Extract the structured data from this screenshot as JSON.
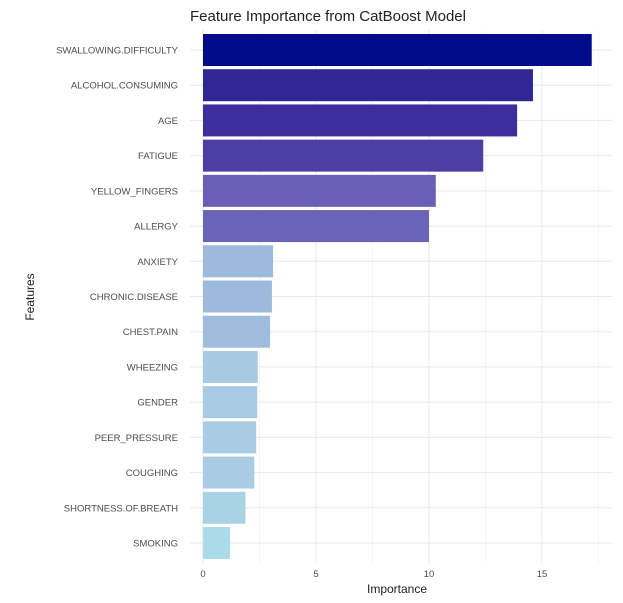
{
  "chart_data": {
    "type": "bar",
    "orientation": "horizontal",
    "title": "Feature Importance from CatBoost Model",
    "xlabel": "Importance",
    "ylabel": "Features",
    "xlim": [
      0,
      17.6
    ],
    "xticks": [
      0,
      5,
      10,
      15
    ],
    "grid": true,
    "legend": "none",
    "categories": [
      "SWALLOWING.DIFFICULTY",
      "ALCOHOL.CONSUMING",
      "AGE",
      "FATIGUE",
      "YELLOW_FINGERS",
      "ALLERGY",
      "ANXIETY",
      "CHRONIC.DISEASE",
      "CHEST.PAIN",
      "WHEEZING",
      "GENDER",
      "PEER_PRESSURE",
      "COUGHING",
      "SHORTNESS.OF.BREATH",
      "SMOKING"
    ],
    "values": [
      17.2,
      14.6,
      13.9,
      12.4,
      10.3,
      10.0,
      3.1,
      3.05,
      2.97,
      2.42,
      2.4,
      2.35,
      2.27,
      1.88,
      1.2
    ],
    "colors": [
      "#000c8a",
      "#2f2793",
      "#3c2f9b",
      "#4d3ea3",
      "#6a5fb6",
      "#6a63ba",
      "#9dbadc",
      "#9dbadc",
      "#9fbcdd",
      "#a7c9e2",
      "#a8cae2",
      "#a9cbe3",
      "#a9cbe3",
      "#a9d2e5",
      "#abdae8"
    ]
  }
}
